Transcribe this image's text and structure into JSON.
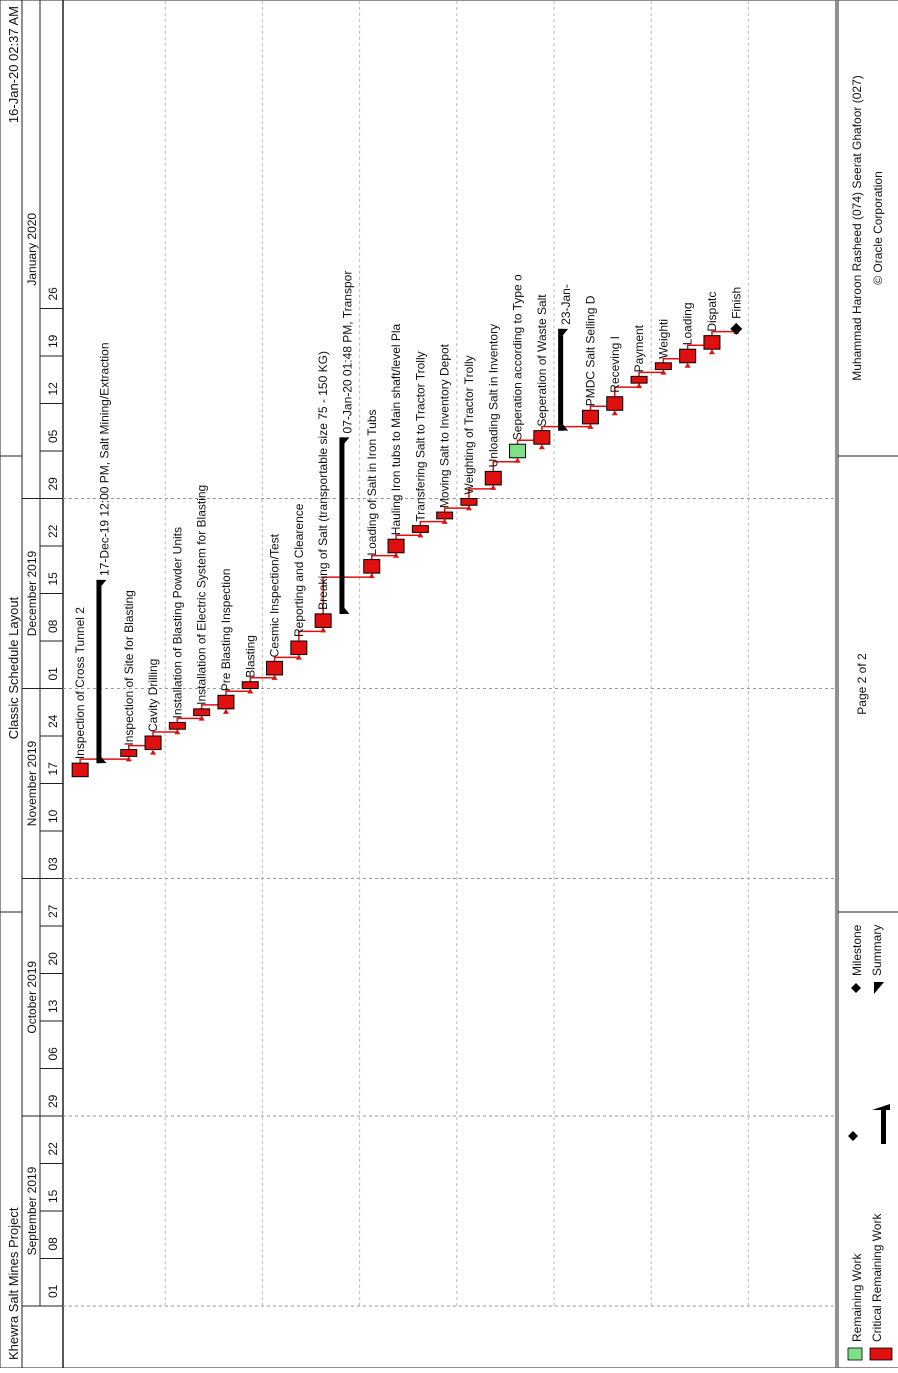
{
  "header": {
    "project": "Khewra Salt Mines Project",
    "layout": "Classic Schedule Layout",
    "date": "16-Jan-20 02:37 AM"
  },
  "timescale": {
    "months": [
      {
        "label": "September 2019",
        "start": "2019-09-01"
      },
      {
        "label": "October 2019",
        "start": "2019-09-29"
      },
      {
        "label": "November 2019",
        "start": "2019-11-03"
      },
      {
        "label": "December 2019",
        "start": "2019-12-01"
      },
      {
        "label": "January 2020",
        "start": "2019-12-29"
      }
    ],
    "weeks": [
      "01",
      "08",
      "15",
      "22",
      "29",
      "06",
      "13",
      "20",
      "27",
      "03",
      "10",
      "17",
      "24",
      "01",
      "08",
      "15",
      "22",
      "29",
      "05",
      "12",
      "19",
      "26"
    ]
  },
  "activities": [
    {
      "type": "bar",
      "name": "Inspection of Cross Tunnel 2",
      "start": "2019-11-18",
      "end": "2019-11-20"
    },
    {
      "type": "summary",
      "name": "17-Dec-19 12:00 PM, Salt Mining/Extraction",
      "start": "2019-11-20",
      "end": "2019-12-17"
    },
    {
      "type": "bar",
      "name": "Inspection of Site for Blasting",
      "start": "2019-11-21",
      "end": "2019-11-22"
    },
    {
      "type": "bar",
      "name": "Cavity Drilling",
      "start": "2019-11-22",
      "end": "2019-11-24"
    },
    {
      "type": "bar",
      "name": "Installation of Blasting Powder Units",
      "start": "2019-11-25",
      "end": "2019-11-26"
    },
    {
      "type": "bar",
      "name": "Installation of Electric System for Blasting",
      "start": "2019-11-27",
      "end": "2019-11-28"
    },
    {
      "type": "bar",
      "name": "Pre Blasting Inspection",
      "start": "2019-11-28",
      "end": "2019-11-30"
    },
    {
      "type": "bar",
      "name": "Blasting",
      "start": "2019-12-01",
      "end": "2019-12-02"
    },
    {
      "type": "bar",
      "name": "Cesmic Inspection/Test",
      "start": "2019-12-03",
      "end": "2019-12-05"
    },
    {
      "type": "bar",
      "name": "Reporting and Clearence",
      "start": "2019-12-06",
      "end": "2019-12-08"
    },
    {
      "type": "bar",
      "name": "Breaking of Salt (transportable size 75 - 150 KG)",
      "start": "2019-12-10",
      "end": "2019-12-12"
    },
    {
      "type": "summary",
      "name": "07-Jan-20 01:48 PM, Transpor",
      "start": "2019-12-12",
      "end": "2020-01-07"
    },
    {
      "type": "bar",
      "name": "Loading of Salt in Iron Tubs",
      "start": "2019-12-18",
      "end": "2019-12-20"
    },
    {
      "type": "bar",
      "name": "Hauling Iron tubs to Main shaft/level Pla",
      "start": "2019-12-21",
      "end": "2019-12-23"
    },
    {
      "type": "bar",
      "name": "Transfering Salt to Tractor Trolly",
      "start": "2019-12-24",
      "end": "2019-12-25"
    },
    {
      "type": "bar",
      "name": "Moving Salt to Inventory Depot",
      "start": "2019-12-26",
      "end": "2019-12-27"
    },
    {
      "type": "bar",
      "name": "Weighting of Tractor Trolly",
      "start": "2019-12-28",
      "end": "2019-12-29"
    },
    {
      "type": "bar",
      "name": "Unloading Salt in Inventory",
      "start": "2019-12-31",
      "end": "2020-01-02"
    },
    {
      "type": "bar",
      "name": "Seperation according to Type o",
      "start": "2020-01-04",
      "end": "2020-01-06",
      "color": "green"
    },
    {
      "type": "bar",
      "name": "Seperation of Waste Salt",
      "start": "2020-01-06",
      "end": "2020-01-08"
    },
    {
      "type": "summary",
      "name": "23-Jan-",
      "start": "2020-01-08",
      "end": "2020-01-23"
    },
    {
      "type": "bar",
      "name": "PMDC Salt Selling D",
      "start": "2020-01-09",
      "end": "2020-01-11"
    },
    {
      "type": "bar",
      "name": "Receving I",
      "start": "2020-01-11",
      "end": "2020-01-13"
    },
    {
      "type": "bar",
      "name": "Payment",
      "start": "2020-01-15",
      "end": "2020-01-16"
    },
    {
      "type": "bar",
      "name": "Weighti",
      "start": "2020-01-17",
      "end": "2020-01-18"
    },
    {
      "type": "bar",
      "name": "Loading",
      "start": "2020-01-18",
      "end": "2020-01-20"
    },
    {
      "type": "bar",
      "name": "Dispatc",
      "start": "2020-01-20",
      "end": "2020-01-22"
    },
    {
      "type": "milestone",
      "name": "Finish",
      "start": "2020-01-23",
      "end": "2020-01-23"
    }
  ],
  "footer": {
    "legend": [
      {
        "label": "Remaining Work",
        "swatch": "#7fe08a"
      },
      {
        "label": "Critical Remaining Work",
        "swatch": "#e01010"
      },
      {
        "label": "Milestone",
        "swatch": "#000000"
      },
      {
        "label": "Summary",
        "swatch": "#000000"
      }
    ],
    "page": "Page 2 of 2",
    "authors": "Muhammad Haroon Rasheed (074) Seerat Ghafoor (027)",
    "copyright": "© Oracle Corporation"
  },
  "colors": {
    "critical": "#e01010",
    "remaining": "#7fe08a",
    "link": "#e01010"
  }
}
